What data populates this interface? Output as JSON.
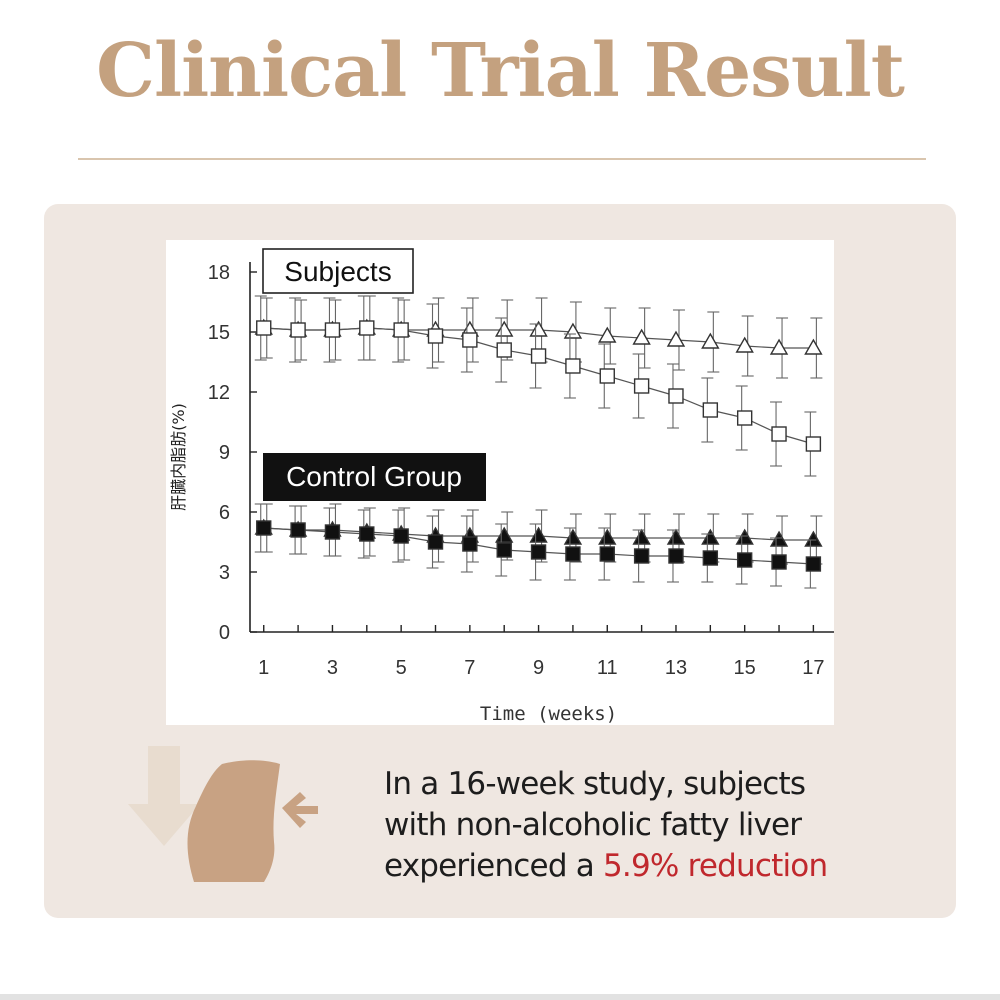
{
  "page": {
    "title": "Clinical Trial Result",
    "caption": {
      "line1": "In a 16-week study, subjects",
      "line2": "with non-alcoholic fatty liver",
      "line3_prefix": "experienced a ",
      "line3_highlight": "5.9% reduction"
    }
  },
  "colors": {
    "title": "#c4a17f",
    "rule": "#d9c5ae",
    "panel": "#efe7e1",
    "highlight": "#c0282d",
    "icon_light": "#e8dccf",
    "icon_dark": "#c8a283"
  },
  "icons": {
    "down_arrow": "down-arrow-icon",
    "body": "body-silhouette-icon",
    "left_arrow": "left-arrow-icon"
  },
  "chart_data": {
    "type": "line",
    "title": "",
    "xlabel": "Time (weeks)",
    "ylabel": "肝臓内脂肪(%)",
    "x": [
      1,
      2,
      3,
      4,
      5,
      6,
      7,
      8,
      9,
      10,
      11,
      12,
      13,
      14,
      15,
      16,
      17
    ],
    "xlim": [
      0.6,
      17.6
    ],
    "ylim": [
      0,
      18.5
    ],
    "xticks": [
      1,
      3,
      5,
      7,
      9,
      11,
      13,
      15,
      17
    ],
    "yticks": [
      0,
      3,
      6,
      9,
      12,
      15,
      18
    ],
    "grid": false,
    "series": [
      {
        "name": "Subjects (△)",
        "marker": "triangle-open",
        "group": "Subjects",
        "values": [
          15.2,
          15.1,
          15.1,
          15.2,
          15.1,
          15.1,
          15.1,
          15.1,
          15.1,
          15.0,
          14.8,
          14.7,
          14.6,
          14.5,
          14.3,
          14.2,
          14.2
        ],
        "error": [
          1.5,
          1.5,
          1.5,
          1.6,
          1.5,
          1.6,
          1.6,
          1.5,
          1.6,
          1.5,
          1.4,
          1.5,
          1.5,
          1.5,
          1.5,
          1.5,
          1.5
        ]
      },
      {
        "name": "Subjects (□)",
        "marker": "square-open",
        "group": "Subjects",
        "values": [
          15.2,
          15.1,
          15.1,
          15.2,
          15.1,
          14.8,
          14.6,
          14.1,
          13.8,
          13.3,
          12.8,
          12.3,
          11.8,
          11.1,
          10.7,
          9.9,
          9.4
        ],
        "error": [
          1.6,
          1.6,
          1.6,
          1.6,
          1.6,
          1.6,
          1.6,
          1.6,
          1.6,
          1.6,
          1.6,
          1.6,
          1.6,
          1.6,
          1.6,
          1.6,
          1.6
        ]
      },
      {
        "name": "Control Group (▲)",
        "marker": "triangle-filled",
        "group": "Control Group",
        "values": [
          5.2,
          5.1,
          5.1,
          5.0,
          4.9,
          4.8,
          4.8,
          4.8,
          4.8,
          4.7,
          4.7,
          4.7,
          4.7,
          4.7,
          4.7,
          4.6,
          4.6
        ],
        "error": [
          1.2,
          1.2,
          1.3,
          1.2,
          1.3,
          1.3,
          1.3,
          1.2,
          1.3,
          1.2,
          1.2,
          1.2,
          1.2,
          1.2,
          1.2,
          1.2,
          1.2
        ]
      },
      {
        "name": "Control Group (■)",
        "marker": "square-filled",
        "group": "Control Group",
        "values": [
          5.2,
          5.1,
          5.0,
          4.9,
          4.8,
          4.5,
          4.4,
          4.1,
          4.0,
          3.9,
          3.9,
          3.8,
          3.8,
          3.7,
          3.6,
          3.5,
          3.4
        ],
        "error": [
          1.2,
          1.2,
          1.2,
          1.2,
          1.3,
          1.3,
          1.4,
          1.3,
          1.4,
          1.3,
          1.3,
          1.3,
          1.3,
          1.2,
          1.2,
          1.2,
          1.2
        ]
      }
    ],
    "annotations": [
      {
        "text": "Subjects",
        "style": "boxed-white",
        "y": 18.4
      },
      {
        "text": "Control Group",
        "style": "boxed-black",
        "y": 8.7
      }
    ]
  }
}
